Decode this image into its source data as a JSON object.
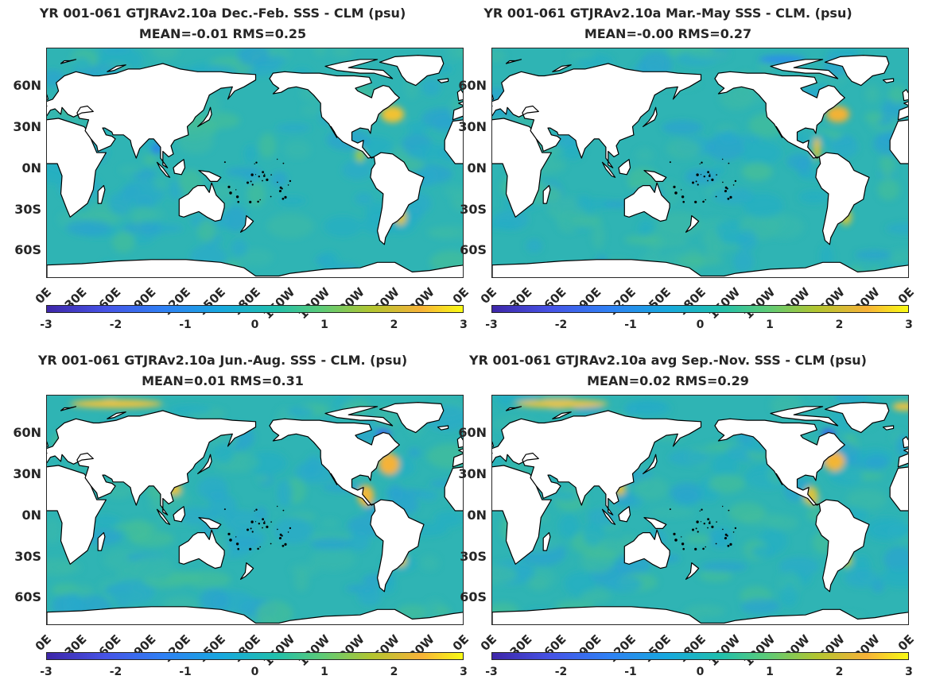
{
  "panels": [
    {
      "title": "YR 001-061 GTJRAv2.10a  Dec.-Feb. SSS - CLM (psu)",
      "stats": "MEAN=-0.01   RMS=0.25",
      "season": "DJF"
    },
    {
      "title": "YR 001-061 GTJRAv2.10a Mar.-May SSS - CLM. (psu)",
      "stats": "MEAN=-0.00   RMS=0.27",
      "season": "MAM"
    },
    {
      "title": "YR 001-061 GTJRAv2.10a Jun.-Aug. SSS - CLM. (psu)",
      "stats": "MEAN=0.01   RMS=0.31",
      "season": "JJA"
    },
    {
      "title": "YR 001-061 GTJRAv2.10a avg Sep.-Nov. SSS - CLM (psu)",
      "stats": "MEAN=0.02   RMS=0.29",
      "season": "SON"
    }
  ],
  "lat_labels": [
    "60N",
    "30N",
    "0N",
    "30S",
    "60S"
  ],
  "lon_labels": [
    "0E",
    "30E",
    "60E",
    "90E",
    "120E",
    "150E",
    "180E",
    "150W",
    "120W",
    "90W",
    "60W",
    "30W",
    "0E"
  ],
  "colorbar": {
    "ticks": [
      "-3",
      "-2",
      "-1",
      "0",
      "1",
      "2",
      "3"
    ],
    "range": [
      -3,
      3
    ],
    "colormap": "parula"
  },
  "colors": {
    "ocean_base": "#2fb4b4",
    "land": "#ffffff",
    "coast": "#000000"
  }
}
